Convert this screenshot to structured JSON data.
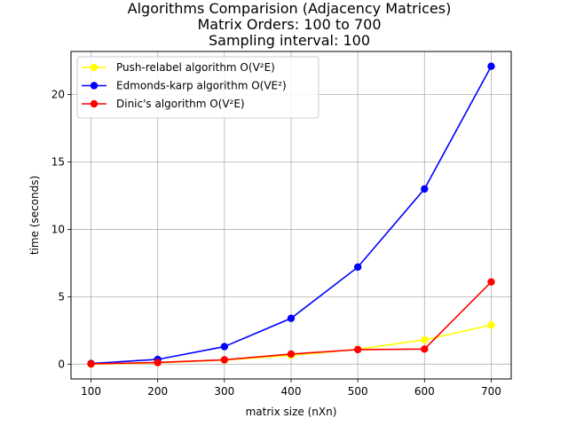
{
  "chart_data": {
    "type": "line",
    "title_lines": [
      "Algorithms Comparision (Adjacency Matrices)",
      "Matrix Orders: 100 to 700",
      "Sampling interval: 100"
    ],
    "xlabel": "matrix size (nXn)",
    "ylabel": "time (seconds)",
    "x": [
      100,
      200,
      300,
      400,
      500,
      600,
      700
    ],
    "xlim": [
      70,
      730
    ],
    "ylim": [
      -1.1,
      23.2
    ],
    "xticks": [
      100,
      200,
      300,
      400,
      500,
      600,
      700
    ],
    "yticks": [
      0,
      5,
      10,
      15,
      20
    ],
    "grid": true,
    "legend_position": "upper-left",
    "series": [
      {
        "name": "Push-relabel algorithm O(V²E)",
        "color": "#ffff00",
        "values": [
          0.0,
          0.1,
          0.3,
          0.65,
          1.1,
          1.8,
          2.9
        ]
      },
      {
        "name": "Edmonds-karp algorithm O(VE²)",
        "color": "#0000ff",
        "values": [
          0.05,
          0.35,
          1.3,
          3.4,
          7.2,
          13.0,
          22.1
        ]
      },
      {
        "name": "Dinic's algorithm O(V²E)",
        "color": "#ff0000",
        "values": [
          0.02,
          0.12,
          0.32,
          0.75,
          1.08,
          1.12,
          6.1
        ]
      }
    ]
  }
}
